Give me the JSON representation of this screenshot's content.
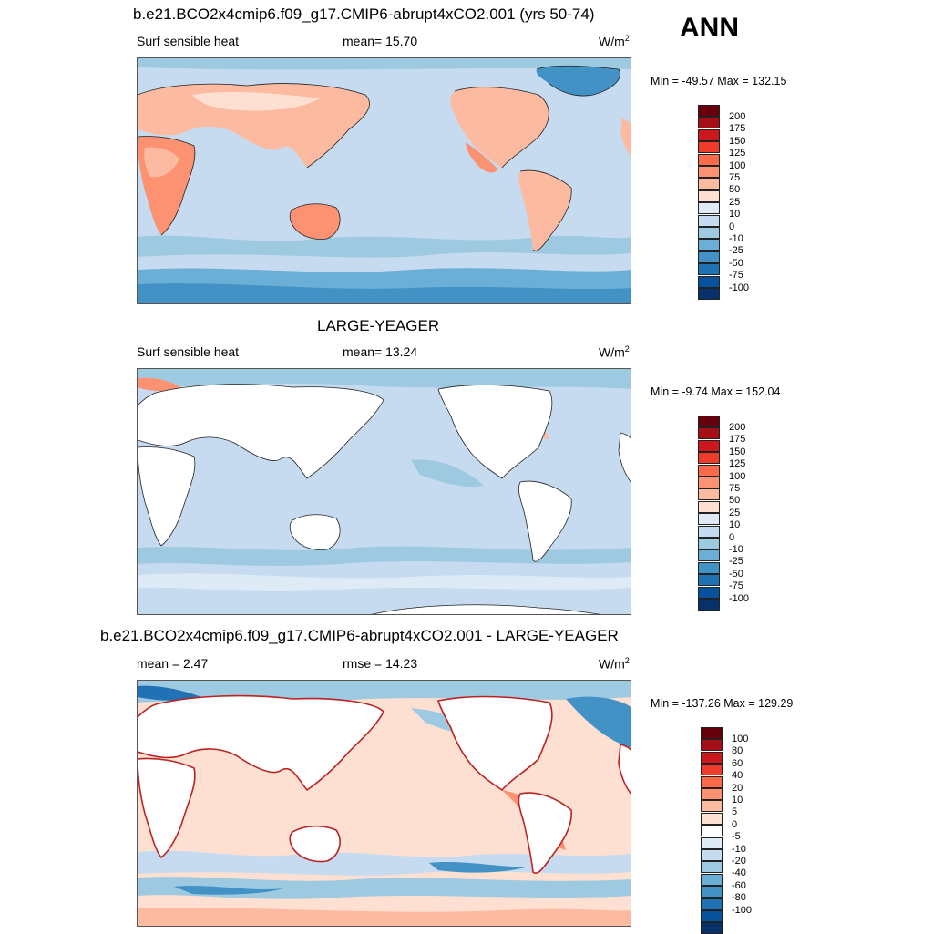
{
  "season": "ANN",
  "panels": [
    {
      "title": "b.e21.BCO2x4cmip6.f09_g17.CMIP6-abrupt4xCO2.001 (yrs 50-74)",
      "left_label": "Surf sensible heat",
      "middle_label": "mean=  15.70",
      "units": "W/m",
      "units_sup": "2",
      "minmax": "Min = -49.57 Max = 132.15",
      "colorbar": {
        "colors": [
          "#67000d",
          "#a50f15",
          "#cb181d",
          "#ef3b2c",
          "#fb6a4a",
          "#fc9272",
          "#fcbba1",
          "#fee0d2",
          "#deebf7",
          "#c6dbef",
          "#9ecae1",
          "#6baed6",
          "#4292c6",
          "#2171b5",
          "#08519c",
          "#08306b"
        ],
        "labels": [
          "200",
          "175",
          "150",
          "125",
          "100",
          "75",
          "50",
          "25",
          "10",
          "0",
          "-10",
          "-25",
          "-50",
          "-75",
          "-100"
        ]
      }
    },
    {
      "title": "LARGE-YEAGER",
      "left_label": "Surf sensible heat",
      "middle_label": "mean=  13.24",
      "units": "W/m",
      "units_sup": "2",
      "minmax": "Min =  -9.74 Max = 152.04",
      "colorbar": {
        "colors": [
          "#67000d",
          "#a50f15",
          "#cb181d",
          "#ef3b2c",
          "#fb6a4a",
          "#fc9272",
          "#fcbba1",
          "#fee0d2",
          "#deebf7",
          "#c6dbef",
          "#9ecae1",
          "#6baed6",
          "#4292c6",
          "#2171b5",
          "#08519c",
          "#08306b"
        ],
        "labels": [
          "200",
          "175",
          "150",
          "125",
          "100",
          "75",
          "50",
          "25",
          "10",
          "0",
          "-10",
          "-25",
          "-50",
          "-75",
          "-100"
        ]
      }
    },
    {
      "title": "b.e21.BCO2x4cmip6.f09_g17.CMIP6-abrupt4xCO2.001 - LARGE-YEAGER",
      "left_label": "mean =   2.47",
      "middle_label": "rmse =  14.23",
      "units": "W/m",
      "units_sup": "2",
      "minmax": "Min = -137.26 Max = 129.29",
      "colorbar": {
        "colors": [
          "#67000d",
          "#a50f15",
          "#cb181d",
          "#ef3b2c",
          "#fb6a4a",
          "#fc9272",
          "#fcbba1",
          "#fee0d2",
          "#ffffff",
          "#deebf7",
          "#c6dbef",
          "#9ecae1",
          "#6baed6",
          "#4292c6",
          "#2171b5",
          "#08519c",
          "#08306b"
        ],
        "labels": [
          "100",
          "80",
          "60",
          "40",
          "20",
          "10",
          "5",
          "0",
          "-5",
          "-10",
          "-20",
          "-40",
          "-60",
          "-80",
          "-100"
        ]
      }
    }
  ]
}
